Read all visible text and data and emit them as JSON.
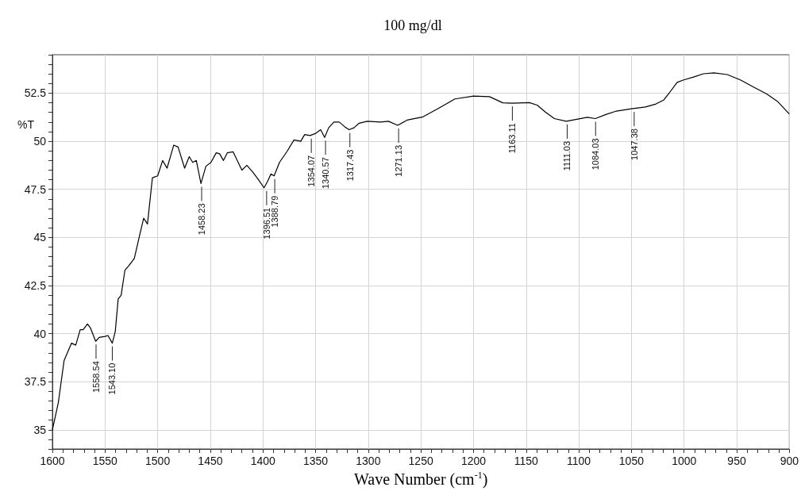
{
  "chart_data": {
    "type": "line",
    "title": "100 mg/dl",
    "xlabel": "Wave Number (cm$^{-1}$)",
    "ylabel": "%T",
    "xlim": [
      1600,
      900
    ],
    "xticks": [
      1600,
      {
        "value": 1590,
        "label": null
      },
      {
        "value": 1580,
        "label": null
      },
      {
        "value": 1570,
        "label": null
      },
      {
        "value": 1560,
        "label": null
      },
      1550,
      {
        "value": 1540,
        "label": null
      },
      {
        "value": 1530,
        "label": null
      },
      {
        "value": 1520,
        "label": null
      },
      {
        "value": 1510,
        "label": null
      },
      1500,
      {
        "value": 1490,
        "label": null
      },
      {
        "value": 1480,
        "label": null
      },
      {
        "value": 1470,
        "label": null
      },
      {
        "value": 1460,
        "label": null
      },
      1450,
      {
        "value": 1440,
        "label": null
      },
      {
        "value": 1430,
        "label": null
      },
      {
        "value": 1420,
        "label": null
      },
      {
        "value": 1410,
        "label": null
      },
      1400,
      {
        "value": 1390,
        "label": null
      },
      {
        "value": 1380,
        "label": null
      },
      {
        "value": 1370,
        "label": null
      },
      {
        "value": 1360,
        "label": null
      },
      1350,
      {
        "value": 1340,
        "label": null
      },
      {
        "value": 1330,
        "label": null
      },
      {
        "value": 1320,
        "label": null
      },
      {
        "value": 1310,
        "label": null
      },
      1300,
      {
        "value": 1290,
        "label": null
      },
      {
        "value": 1280,
        "label": null
      },
      {
        "value": 1270,
        "label": null
      },
      {
        "value": 1260,
        "label": null
      },
      1250,
      {
        "value": 1240,
        "label": null
      },
      {
        "value": 1230,
        "label": null
      },
      {
        "value": 1220,
        "label": null
      },
      {
        "value": 1210,
        "label": null
      },
      1200,
      {
        "value": 1190,
        "label": null
      },
      {
        "value": 1180,
        "label": null
      },
      {
        "value": 1170,
        "label": null
      },
      {
        "value": 1160,
        "label": null
      },
      1150,
      {
        "value": 1140,
        "label": null
      },
      {
        "value": 1130,
        "label": null
      },
      {
        "value": 1120,
        "label": null
      },
      {
        "value": 1110,
        "label": null
      },
      1100,
      {
        "value": 1090,
        "label": null
      },
      {
        "value": 1080,
        "label": null
      },
      {
        "value": 1070,
        "label": null
      },
      {
        "value": 1060,
        "label": null
      },
      1050,
      {
        "value": 1040,
        "label": null
      },
      {
        "value": 1030,
        "label": null
      },
      {
        "value": 1020,
        "label": null
      },
      {
        "value": 1010,
        "label": null
      },
      1000,
      {
        "value": 990,
        "label": null
      },
      {
        "value": 980,
        "label": null
      },
      {
        "value": 970,
        "label": null
      },
      {
        "value": 960,
        "label": null
      },
      950,
      {
        "value": 940,
        "label": null
      },
      {
        "value": 930,
        "label": null
      },
      {
        "value": 920,
        "label": null
      },
      {
        "value": 910,
        "label": null
      },
      900
    ],
    "ylim": [
      34,
      54.5
    ],
    "yticks": [
      {
        "value": 34,
        "label": null
      },
      {
        "value": 34.5,
        "label": null
      },
      35,
      {
        "value": 35.5,
        "label": null
      },
      {
        "value": 36,
        "label": null
      },
      {
        "value": 36.5,
        "label": null
      },
      {
        "value": 37,
        "label": null
      },
      37.5,
      {
        "value": 38,
        "label": null
      },
      {
        "value": 38.5,
        "label": null
      },
      {
        "value": 39,
        "label": null
      },
      {
        "value": 39.5,
        "label": null
      },
      40,
      {
        "value": 40.5,
        "label": null
      },
      {
        "value": 41,
        "label": null
      },
      {
        "value": 41.5,
        "label": null
      },
      {
        "value": 42,
        "label": null
      },
      42.5,
      {
        "value": 43,
        "label": null
      },
      {
        "value": 43.5,
        "label": null
      },
      {
        "value": 44,
        "label": null
      },
      {
        "value": 44.5,
        "label": null
      },
      45,
      {
        "value": 45.5,
        "label": null
      },
      {
        "value": 46,
        "label": null
      },
      {
        "value": 46.5,
        "label": null
      },
      {
        "value": 47,
        "label": null
      },
      47.5,
      {
        "value": 48,
        "label": null
      },
      {
        "value": 48.5,
        "label": null
      },
      {
        "value": 49,
        "label": null
      },
      {
        "value": 49.5,
        "label": null
      },
      50,
      {
        "value": 50.5,
        "label": null
      },
      {
        "value": 51,
        "label": null
      },
      {
        "value": 51.5,
        "label": null
      },
      {
        "value": 52,
        "label": null
      },
      52.5,
      {
        "value": 53,
        "label": null
      },
      {
        "value": 53.5,
        "label": null
      },
      {
        "value": 54,
        "label": null
      },
      {
        "value": 54.5,
        "label": null
      }
    ],
    "grid": true,
    "marker": "none",
    "line_style": "solid",
    "series": [
      {
        "color": "#000000",
        "x": [
          1600,
          1594.4,
          1588.9,
          1581.9,
          1577.8,
          1573.6,
          1570.8,
          1566.7,
          1563.9,
          1558.9,
          1555.6,
          1550,
          1547.2,
          1543.1,
          1540.3,
          1537.5,
          1534.7,
          1531.1,
          1527.8,
          1522.2,
          1517.2,
          1513.3,
          1509.7,
          1505,
          1500,
          1495.3,
          1491.1,
          1484.7,
          1480.6,
          1474.4,
          1470,
          1466.7,
          1463.3,
          1458.9,
          1454.2,
          1449.4,
          1444.4,
          1441.1,
          1437.5,
          1433.9,
          1428.3,
          1420,
          1415.3,
          1409.7,
          1404.2,
          1399,
          1395.7,
          1392.4,
          1389.4,
          1384.3,
          1376.8,
          1370.5,
          1364.1,
          1360.4,
          1355.3,
          1350.3,
          1345.2,
          1341.4,
          1337.6,
          1332.6,
          1327.5,
          1322.5,
          1318.2,
          1313.6,
          1308.6,
          1301,
          1288.4,
          1280.8,
          1272,
          1263.1,
          1248,
          1232.8,
          1217.7,
          1200,
          1184.8,
          1172.2,
          1163.4,
          1147,
          1139.5,
          1132,
          1123.2,
          1111.9,
          1101.9,
          1091.9,
          1084.3,
          1074.3,
          1064.3,
          1050,
          1036.7,
          1026.7,
          1019.2,
          1014.2,
          1006.6,
          1000.4,
          991.6,
          981.6,
          971.6,
          959,
          946.5,
          934,
          921.4,
          911.4,
          900.1
        ],
        "values": [
          35,
          36.4,
          38.6,
          39.5,
          39.4,
          40.2,
          40.2,
          40.5,
          40.3,
          39.6,
          39.8,
          39.85,
          39.9,
          39.5,
          40.1,
          41.8,
          42,
          43.3,
          43.5,
          43.9,
          45.1,
          46,
          45.7,
          48.1,
          48.2,
          49,
          48.6,
          49.8,
          49.7,
          48.6,
          49.2,
          48.9,
          49,
          47.8,
          48.7,
          48.9,
          49.4,
          49.35,
          49,
          49.4,
          49.45,
          48.5,
          48.75,
          48.4,
          48,
          47.58,
          47.9,
          48.3,
          48.2,
          48.9,
          49.5,
          50.07,
          50,
          50.35,
          50.3,
          50.4,
          50.6,
          50.2,
          50.7,
          51,
          51,
          50.76,
          50.6,
          50.7,
          50.94,
          51.04,
          51,
          51.04,
          50.83,
          51.1,
          51.27,
          51.73,
          52.2,
          52.35,
          52.32,
          52,
          51.98,
          52.01,
          51.88,
          51.53,
          51.18,
          51.04,
          51.14,
          51.25,
          51.18,
          51.39,
          51.57,
          51.69,
          51.78,
          51.94,
          52.15,
          52.5,
          53.06,
          53.19,
          53.33,
          53.51,
          53.56,
          53.47,
          53.19,
          52.82,
          52.46,
          52.08,
          51.42
        ]
      }
    ],
    "annotations": [
      {
        "text": "1558.54",
        "x": 1558.54,
        "y": 39.6
      },
      {
        "text": "1543.10",
        "x": 1543.1,
        "y": 39.5
      },
      {
        "text": "1458.23",
        "x": 1458.23,
        "y": 47.8
      },
      {
        "text": "1396.51",
        "x": 1396.51,
        "y": 47.58
      },
      {
        "text": "1388.79",
        "x": 1388.79,
        "y": 48.2
      },
      {
        "text": "1354.07",
        "x": 1354.07,
        "y": 50.3
      },
      {
        "text": "1340.57",
        "x": 1340.57,
        "y": 50.2
      },
      {
        "text": "1317.43",
        "x": 1317.43,
        "y": 50.6
      },
      {
        "text": "1271.13",
        "x": 1271.13,
        "y": 50.83
      },
      {
        "text": "1163.11",
        "x": 1163.11,
        "y": 51.98
      },
      {
        "text": "1111.03",
        "x": 1111.03,
        "y": 51.04
      },
      {
        "text": "1084.03",
        "x": 1084.03,
        "y": 51.18
      },
      {
        "text": "1047.38",
        "x": 1047.38,
        "y": 51.69
      }
    ]
  }
}
